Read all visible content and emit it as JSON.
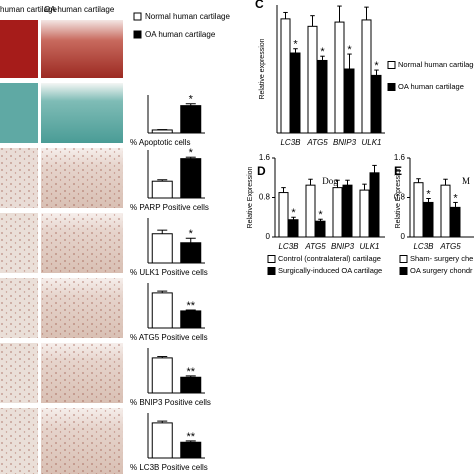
{
  "panel_a": {
    "column_headers": [
      "human cartilage",
      "OA human cartilage"
    ],
    "legend": [
      "Normal human cartilage",
      "OA human cartilage"
    ]
  },
  "chart_data": [
    {
      "type": "bar",
      "xlabel": "% Apoptotic cells",
      "values": [
        8,
        72
      ],
      "errors": [
        1,
        5
      ],
      "colors": [
        "#ffffff",
        "#000000"
      ],
      "marks": [
        null,
        "*"
      ],
      "ylim": [
        0,
        100
      ]
    },
    {
      "type": "bar",
      "xlabel": "% PARP Positive cells",
      "values": [
        35,
        82
      ],
      "errors": [
        3,
        3
      ],
      "colors": [
        "#ffffff",
        "#000000"
      ],
      "marks": [
        null,
        "*"
      ],
      "ylim": [
        0,
        100
      ]
    },
    {
      "type": "bar",
      "xlabel": "% ULK1 Positive cells",
      "values": [
        65,
        45
      ],
      "errors": [
        8,
        10
      ],
      "colors": [
        "#ffffff",
        "#000000"
      ],
      "marks": [
        null,
        "*"
      ],
      "ylim": [
        0,
        100
      ]
    },
    {
      "type": "bar",
      "xlabel": "% ATG5 Positive cells",
      "values": [
        78,
        38
      ],
      "errors": [
        4,
        2
      ],
      "colors": [
        "#ffffff",
        "#000000"
      ],
      "marks": [
        null,
        "**"
      ],
      "ylim": [
        0,
        100
      ]
    },
    {
      "type": "bar",
      "xlabel": "% BNIP3 Positive cells",
      "values": [
        78,
        35
      ],
      "errors": [
        3,
        3
      ],
      "colors": [
        "#ffffff",
        "#000000"
      ],
      "marks": [
        null,
        "**"
      ],
      "ylim": [
        0,
        100
      ]
    },
    {
      "type": "bar",
      "xlabel": "% LC3B Positive cells",
      "values": [
        78,
        35
      ],
      "errors": [
        4,
        3
      ],
      "colors": [
        "#ffffff",
        "#000000"
      ],
      "marks": [
        null,
        "**"
      ],
      "ylim": [
        0,
        100
      ]
    },
    {
      "type": "grouped-bar",
      "panel": "C",
      "ylabel": "Relative expression",
      "categories": [
        "LC3B",
        "ATG5",
        "BNIP3",
        "ULK1"
      ],
      "ylim": [
        0,
        1.2
      ],
      "series": [
        {
          "name": "Normal human cartilage",
          "color": "#ffffff",
          "values": [
            1.07,
            1.0,
            1.04,
            1.06
          ],
          "errors": [
            0.06,
            0.1,
            0.15,
            0.12
          ],
          "marks": [
            null,
            null,
            null,
            null
          ]
        },
        {
          "name": "OA human cartilage",
          "color": "#000000",
          "values": [
            0.75,
            0.68,
            0.6,
            0.54
          ],
          "errors": [
            0.04,
            0.04,
            0.14,
            0.05
          ],
          "marks": [
            "*",
            "*",
            "*",
            "*"
          ]
        }
      ]
    },
    {
      "type": "grouped-bar",
      "panel": "D",
      "title": "Dog",
      "ylabel": "Relative Expression",
      "categories": [
        "LC3B",
        "ATG5",
        "BNIP3",
        "ULK1"
      ],
      "ylim": [
        0,
        1.6
      ],
      "yticks": [
        0,
        0.8,
        1.6
      ],
      "series": [
        {
          "name": "Control (contralateral) cartilage",
          "color": "#ffffff",
          "values": [
            0.9,
            1.05,
            1.0,
            0.95
          ],
          "errors": [
            0.1,
            0.12,
            0.15,
            0.12
          ],
          "marks": [
            null,
            null,
            null,
            null
          ]
        },
        {
          "name": "Surgically-induced OA cartilage",
          "color": "#000000",
          "values": [
            0.35,
            0.32,
            1.05,
            1.3
          ],
          "errors": [
            0.05,
            0.04,
            0.1,
            0.15
          ],
          "marks": [
            "*",
            "*",
            null,
            null
          ]
        }
      ]
    },
    {
      "type": "grouped-bar",
      "panel": "E",
      "title": "M",
      "ylabel": "Relative Expression",
      "categories": [
        "LC3B",
        "ATG5"
      ],
      "ylim": [
        0,
        1.6
      ],
      "yticks": [
        0,
        0.8,
        1.6
      ],
      "series": [
        {
          "name": "Sham- surgery che",
          "color": "#ffffff",
          "values": [
            1.1,
            1.05
          ],
          "errors": [
            0.08,
            0.12
          ],
          "marks": [
            null,
            null
          ]
        },
        {
          "name": "OA surgery chondr",
          "color": "#000000",
          "values": [
            0.7,
            0.6
          ],
          "errors": [
            0.08,
            0.1
          ],
          "marks": [
            "*",
            "*"
          ]
        }
      ]
    }
  ]
}
